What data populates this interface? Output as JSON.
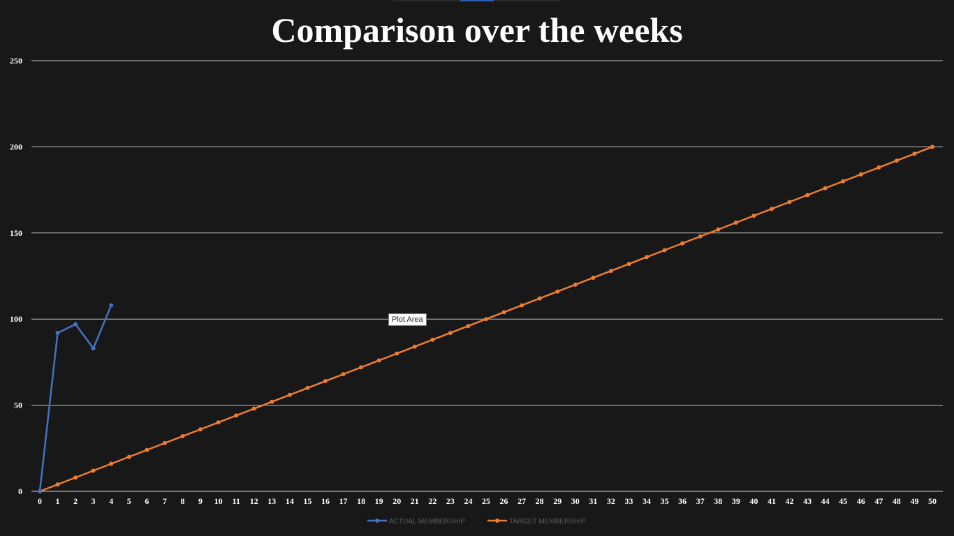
{
  "chart_data": {
    "type": "line",
    "title": "Comparison over the weeks",
    "xlabel": "",
    "ylabel": "",
    "x": [
      0,
      1,
      2,
      3,
      4,
      5,
      6,
      7,
      8,
      9,
      10,
      11,
      12,
      13,
      14,
      15,
      16,
      17,
      18,
      19,
      20,
      21,
      22,
      23,
      24,
      25,
      26,
      27,
      28,
      29,
      30,
      31,
      32,
      33,
      34,
      35,
      36,
      37,
      38,
      39,
      40,
      41,
      42,
      43,
      44,
      45,
      46,
      47,
      48,
      49,
      50
    ],
    "ylim": [
      0,
      250
    ],
    "yticks": [
      0,
      50,
      100,
      150,
      200,
      250
    ],
    "grid": true,
    "legend_position": "bottom",
    "series": [
      {
        "name": "ACTUAL MEMBERSHIP",
        "color": "#4472c4",
        "x": [
          0,
          1,
          2,
          3,
          4
        ],
        "values": [
          0,
          92,
          97,
          83,
          108
        ]
      },
      {
        "name": "TARGET MEMBERSHIP",
        "color": "#ed7d31",
        "x": [
          0,
          1,
          2,
          3,
          4,
          5,
          6,
          7,
          8,
          9,
          10,
          11,
          12,
          13,
          14,
          15,
          16,
          17,
          18,
          19,
          20,
          21,
          22,
          23,
          24,
          25,
          26,
          27,
          28,
          29,
          30,
          31,
          32,
          33,
          34,
          35,
          36,
          37,
          38,
          39,
          40,
          41,
          42,
          43,
          44,
          45,
          46,
          47,
          48,
          49,
          50
        ],
        "values": [
          0,
          4,
          8,
          12,
          16,
          20,
          24,
          28,
          32,
          36,
          40,
          44,
          48,
          52,
          56,
          60,
          64,
          68,
          72,
          76,
          80,
          84,
          88,
          92,
          96,
          100,
          104,
          108,
          112,
          116,
          120,
          124,
          128,
          132,
          136,
          140,
          144,
          148,
          152,
          156,
          160,
          164,
          168,
          172,
          176,
          180,
          184,
          188,
          192,
          196,
          200
        ]
      }
    ],
    "tooltip": "Plot Area"
  }
}
